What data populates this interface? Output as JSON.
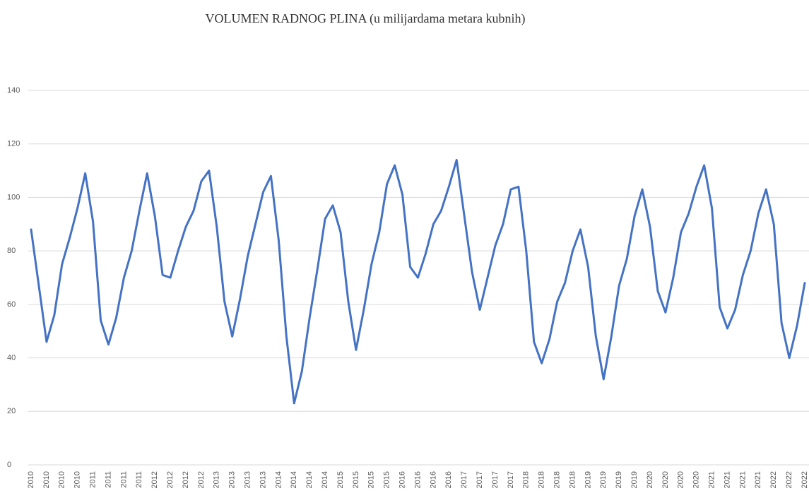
{
  "chart_data": {
    "type": "line",
    "title": "VOLUMEN RADNOG PLINA (u milijardama metara kubnih)",
    "categories": [
      "2010",
      null,
      "2010",
      null,
      "2010",
      null,
      "2010",
      null,
      "2011",
      null,
      "2011",
      null,
      "2011",
      null,
      "2011",
      null,
      "2012",
      null,
      "2012",
      null,
      "2012",
      null,
      "2012",
      null,
      "2013",
      null,
      "2013",
      null,
      "2013",
      null,
      "2013",
      null,
      "2014",
      null,
      "2014",
      null,
      "2014",
      null,
      "2014",
      null,
      "2015",
      null,
      "2015",
      null,
      "2015",
      null,
      "2015",
      null,
      "2016",
      null,
      "2016",
      null,
      "2016",
      null,
      "2016",
      null,
      "2017",
      null,
      "2017",
      null,
      "2017",
      null,
      "2017",
      null,
      "2018",
      null,
      "2018",
      null,
      "2018",
      null,
      "2018",
      null,
      "2019",
      null,
      "2019",
      null,
      "2019",
      null,
      "2019",
      null,
      "2020",
      null,
      "2020",
      null,
      "2020",
      null,
      "2020",
      null,
      "2021",
      null,
      "2021",
      null,
      "2021",
      null,
      "2021",
      null,
      "2022",
      null,
      "2022",
      null,
      "2022"
    ],
    "series": [
      {
        "color": "#4472c4",
        "values": [
          88,
          67,
          46,
          56,
          75,
          85,
          96,
          109,
          91,
          54,
          45,
          55,
          70,
          80,
          95,
          109,
          93,
          71,
          70,
          80,
          89,
          95,
          106,
          110,
          89,
          61,
          48,
          62,
          78,
          90,
          102,
          108,
          84,
          48,
          23,
          35,
          55,
          73,
          92,
          97,
          87,
          61,
          43,
          58,
          75,
          87,
          105,
          112,
          101,
          74,
          70,
          79,
          90,
          95,
          104,
          114,
          93,
          72,
          58,
          70,
          82,
          90,
          103,
          104,
          80,
          46,
          38,
          47,
          61,
          68,
          80,
          88,
          74,
          48,
          32,
          48,
          67,
          77,
          93,
          103,
          89,
          65,
          57,
          70,
          87,
          94,
          104,
          112,
          96,
          59,
          51,
          58,
          71,
          80,
          94,
          103,
          90,
          53,
          40,
          52,
          68
        ]
      }
    ],
    "ylim": [
      0,
      140
    ],
    "yticks": [
      0,
      20,
      40,
      60,
      80,
      100,
      120,
      140
    ],
    "grid": true
  }
}
